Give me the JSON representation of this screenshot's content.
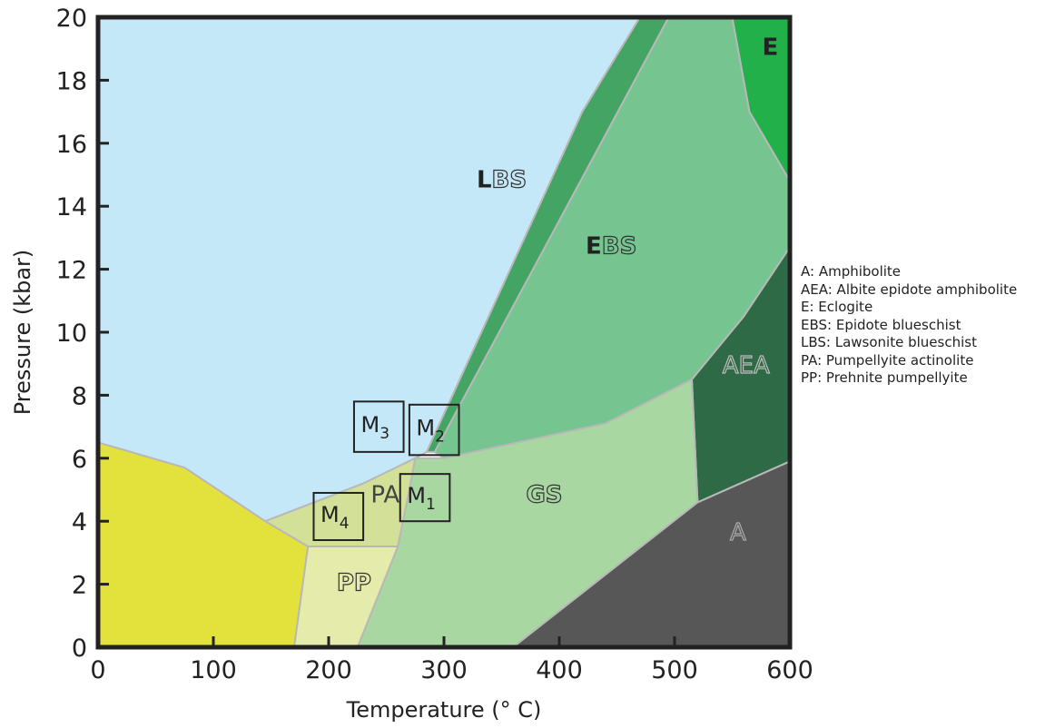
{
  "chart_data": {
    "type": "area",
    "xlabel": "Temperature (° C)",
    "ylabel": "Pressure (kbar)",
    "xlim": [
      0,
      600
    ],
    "ylim": [
      0,
      20
    ],
    "xticks": [
      0,
      100,
      200,
      300,
      400,
      500,
      600
    ],
    "yticks": [
      0,
      2,
      4,
      6,
      8,
      10,
      12,
      14,
      16,
      18,
      20
    ],
    "grid": false,
    "legend_position": "right",
    "regions": [
      {
        "id": "LBS",
        "label_bold": "L",
        "label_rest": "BS",
        "color": "#c5e8f8",
        "points": [
          [
            0,
            20
          ],
          [
            470,
            20
          ],
          [
            420,
            17
          ],
          [
            285,
            6.2
          ],
          [
            275,
            6
          ],
          [
            230,
            5.2
          ],
          [
            145,
            4.0
          ],
          [
            75,
            5.7
          ],
          [
            0,
            6.5
          ]
        ]
      },
      {
        "id": "LBS_dark_band",
        "color": "#44a463",
        "points": [
          [
            470,
            20
          ],
          [
            495,
            20
          ],
          [
            292,
            6.2
          ],
          [
            285,
            6.2
          ],
          [
            420,
            17
          ]
        ]
      },
      {
        "id": "EBS",
        "label_bold": "E",
        "label_rest": "BS",
        "color": "#76c591",
        "points": [
          [
            495,
            20
          ],
          [
            550,
            20
          ],
          [
            565,
            17
          ],
          [
            600,
            14.8
          ],
          [
            600,
            12.7
          ],
          [
            560,
            10.5
          ],
          [
            515,
            8.5
          ],
          [
            440,
            7.1
          ],
          [
            300,
            6.0
          ],
          [
            292,
            6.2
          ]
        ]
      },
      {
        "id": "E",
        "label": "E",
        "color": "#22b04a",
        "points": [
          [
            550,
            20
          ],
          [
            600,
            20
          ],
          [
            600,
            14.8
          ],
          [
            565,
            17
          ]
        ]
      },
      {
        "id": "AEA",
        "label": "AEA",
        "color": "#2d6a45",
        "points": [
          [
            600,
            12.7
          ],
          [
            600,
            5.9
          ],
          [
            520,
            4.6
          ],
          [
            515,
            8.5
          ],
          [
            560,
            10.5
          ]
        ]
      },
      {
        "id": "GS",
        "label": "GS",
        "color": "#a8d7a2",
        "points": [
          [
            275,
            6
          ],
          [
            300,
            6.0
          ],
          [
            440,
            7.1
          ],
          [
            515,
            8.5
          ],
          [
            520,
            4.6
          ],
          [
            360,
            0
          ],
          [
            225,
            0
          ],
          [
            260,
            3.2
          ],
          [
            270,
            5
          ]
        ]
      },
      {
        "id": "A",
        "label": "A",
        "color": "#575757",
        "points": [
          [
            520,
            4.6
          ],
          [
            600,
            5.9
          ],
          [
            600,
            0
          ],
          [
            360,
            0
          ]
        ]
      },
      {
        "id": "PA",
        "label": "PA",
        "color": "#d3e098",
        "points": [
          [
            145,
            4.0
          ],
          [
            230,
            5.2
          ],
          [
            275,
            6
          ],
          [
            270,
            5
          ],
          [
            260,
            3.2
          ],
          [
            182,
            3.2
          ]
        ]
      },
      {
        "id": "PP",
        "label": "PP",
        "color": "#e5ebab",
        "points": [
          [
            182,
            3.2
          ],
          [
            260,
            3.2
          ],
          [
            225,
            0
          ],
          [
            170,
            0
          ]
        ]
      },
      {
        "id": "zeolite_yellow",
        "color": "#e3e23d",
        "points": [
          [
            0,
            6.5
          ],
          [
            75,
            5.7
          ],
          [
            145,
            4.0
          ],
          [
            182,
            3.2
          ],
          [
            170,
            0
          ],
          [
            0,
            0
          ]
        ]
      }
    ],
    "boxes": [
      {
        "label": "M",
        "sub": "3",
        "x0": 222,
        "x1": 265,
        "y0": 6.2,
        "y1": 7.8
      },
      {
        "label": "M",
        "sub": "2",
        "x0": 270,
        "x1": 313,
        "y0": 6.1,
        "y1": 7.7
      },
      {
        "label": "M",
        "sub": "1",
        "x0": 262,
        "x1": 305,
        "y0": 4.0,
        "y1": 5.5
      },
      {
        "label": "M",
        "sub": "4",
        "x0": 187,
        "x1": 230,
        "y0": 3.4,
        "y1": 4.9
      }
    ]
  },
  "legend": [
    "A: Amphibolite",
    "AEA: Albite epidote amphibolite",
    "E: Eclogite",
    "EBS: Epidote blueschist",
    "LBS: Lawsonite blueschist",
    "PA: Pumpellyite actinolite",
    "PP: Prehnite pumpellyite"
  ]
}
